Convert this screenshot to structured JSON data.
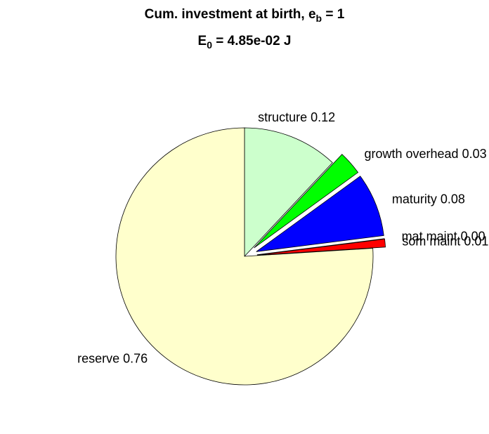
{
  "chart_data": {
    "type": "pie",
    "title": [
      {
        "text": "Cum. investment at birth, e",
        "sub": "b",
        "tail": " = 1"
      },
      {
        "text": "E",
        "sub": "0",
        "tail": " = 4.85e-02 J"
      }
    ],
    "categories": [
      "structure",
      "growth overhead",
      "maturity",
      "mat maint",
      "som maint",
      "reserve"
    ],
    "values": [
      0.12,
      0.03,
      0.08,
      0.0,
      0.01,
      0.76
    ],
    "value_labels": [
      "0.12",
      "0.03",
      "0.08",
      "0.00",
      "0.01",
      "0.76"
    ],
    "colors": [
      "#ccffcc",
      "#00ff00",
      "#0000ff",
      "#000080",
      "#ff0000",
      "#ffffcc"
    ],
    "explode": [
      false,
      true,
      true,
      true,
      true,
      false
    ]
  }
}
